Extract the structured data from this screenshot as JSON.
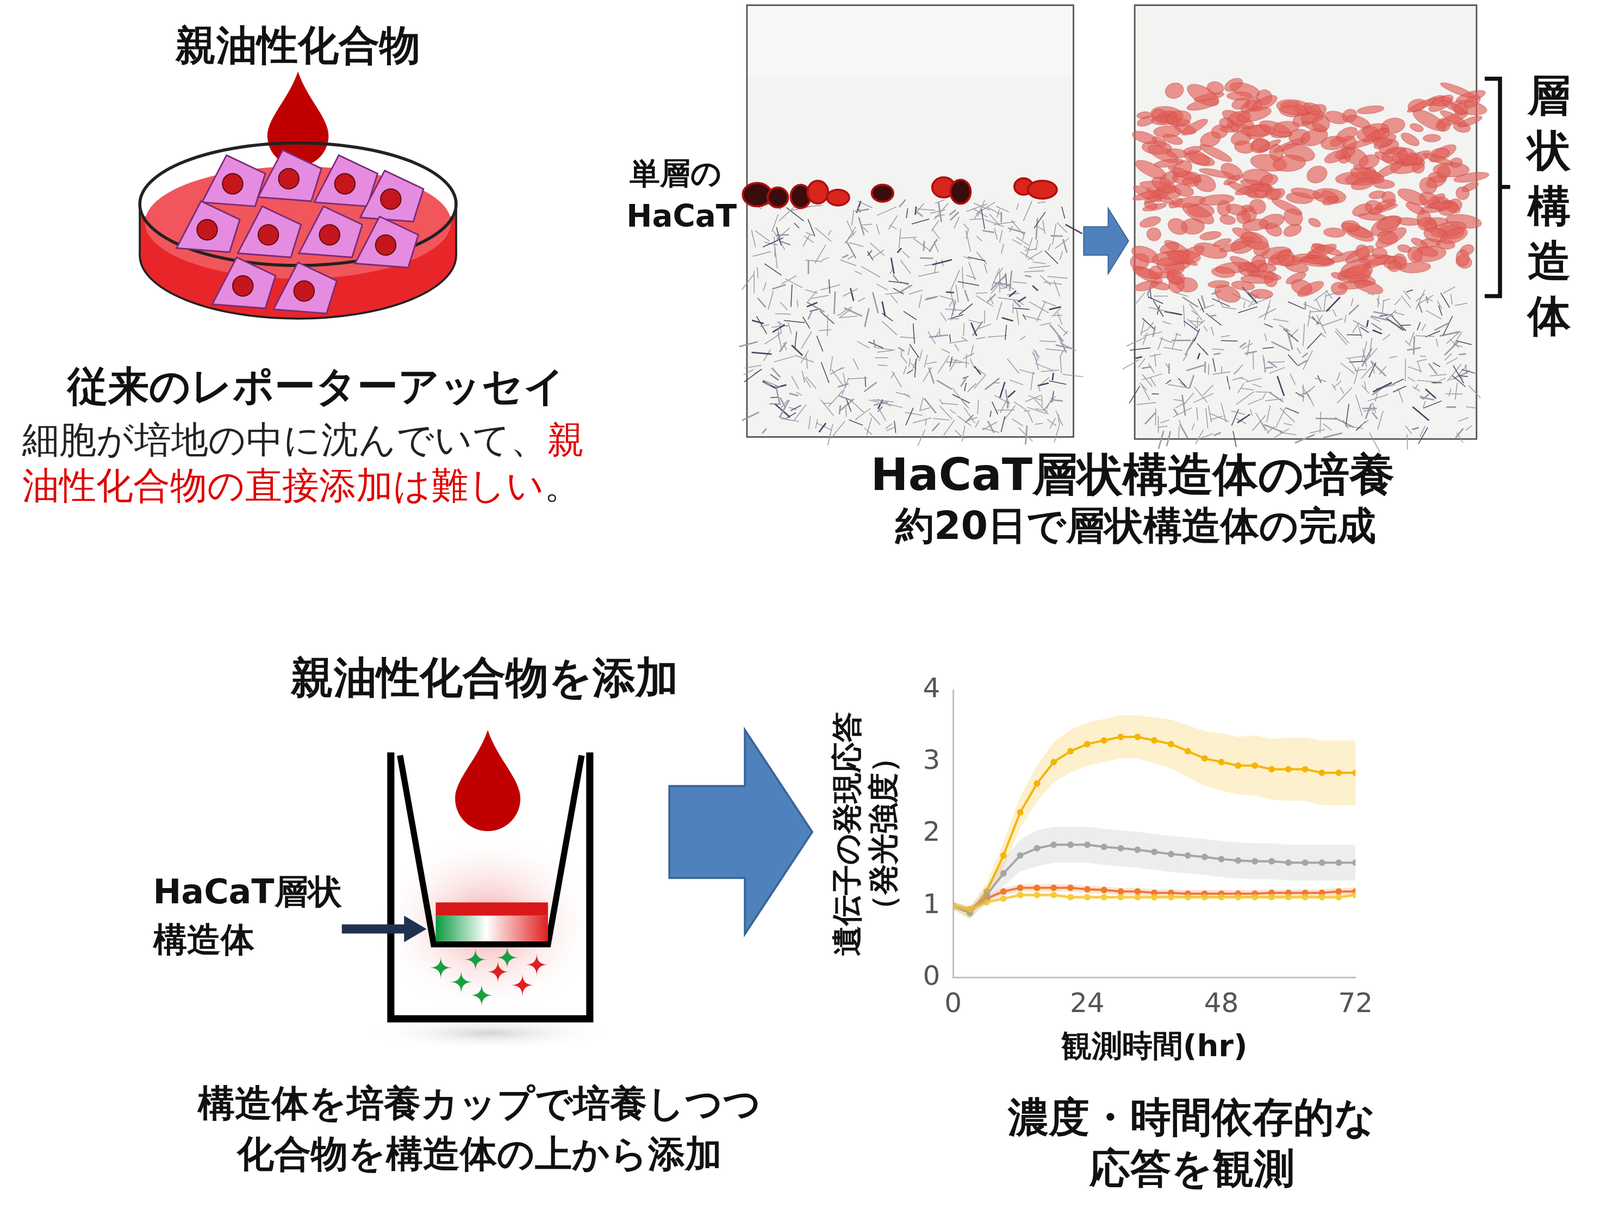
{
  "top_left": {
    "compound": "親油性化合物",
    "title": "従来のレポーターアッセイ",
    "description": [
      [
        {
          "text": "細胞が培地の中に沈んでいて、",
          "color": "#222222"
        },
        {
          "text": "親",
          "color": "#e00000"
        }
      ],
      [
        {
          "text": "油性化合物の直接添加は難しい",
          "color": "#e00000"
        },
        {
          "text": "。",
          "color": "#222222"
        }
      ]
    ]
  },
  "top_right": {
    "monolayer_label": [
      "単層の",
      "HaCaT"
    ],
    "bracket_label": "層状構造体",
    "caption": "HaCaT層状構造体の培養",
    "subcaption": "約20日で層状構造体の完成"
  },
  "bottom_left": {
    "title": "親油性化合物を添加",
    "structure_label": [
      "HaCaT層状",
      "構造体"
    ],
    "caption": [
      "構造体を培養カップで培養しつつ",
      "化合物を構造体の上から添加"
    ]
  },
  "bottom_right": {
    "caption": [
      "濃度・時間依存的な",
      "応答を観測"
    ]
  },
  "chart_data": {
    "type": "line",
    "x_label": "観測時間(hr)",
    "y_label": [
      "遺伝子の発現応答",
      "（発光強度）"
    ],
    "x": [
      0,
      3,
      6,
      9,
      12,
      15,
      18,
      21,
      24,
      27,
      30,
      33,
      36,
      39,
      42,
      45,
      48,
      51,
      54,
      57,
      60,
      63,
      66,
      69,
      72
    ],
    "xlim": [
      0,
      72
    ],
    "xticks": [
      0,
      24,
      48,
      72
    ],
    "ylim": [
      0,
      4
    ],
    "yticks": [
      0,
      1,
      2,
      3,
      4
    ],
    "grid": false,
    "series": [
      {
        "color": "#f5cc3a",
        "marker": "circle",
        "line_style": "solid",
        "values": [
          1.0,
          0.95,
          1.05,
          1.1,
          1.15,
          1.15,
          1.15,
          1.12,
          1.12,
          1.12,
          1.12,
          1.12,
          1.12,
          1.12,
          1.12,
          1.12,
          1.12,
          1.12,
          1.12,
          1.12,
          1.12,
          1.12,
          1.12,
          1.12,
          1.15
        ],
        "error": [
          0.03,
          0.03,
          0.03,
          0.03,
          0.03,
          0.03,
          0.03,
          0.03,
          0.03,
          0.03,
          0.03,
          0.03,
          0.03,
          0.03,
          0.03,
          0.03,
          0.03,
          0.03,
          0.03,
          0.03,
          0.03,
          0.03,
          0.03,
          0.03,
          0.03
        ]
      },
      {
        "color": "#a6a6a6",
        "marker": "circle",
        "line_style": "solid",
        "values": [
          1.0,
          0.9,
          1.15,
          1.45,
          1.7,
          1.8,
          1.85,
          1.85,
          1.85,
          1.82,
          1.8,
          1.78,
          1.75,
          1.72,
          1.7,
          1.68,
          1.65,
          1.63,
          1.62,
          1.62,
          1.6,
          1.6,
          1.6,
          1.6,
          1.6
        ],
        "error": [
          0.05,
          0.08,
          0.12,
          0.18,
          0.22,
          0.25,
          0.25,
          0.25,
          0.25,
          0.25,
          0.25,
          0.25,
          0.25,
          0.25,
          0.25,
          0.25,
          0.25,
          0.25,
          0.25,
          0.25,
          0.25,
          0.25,
          0.25,
          0.25,
          0.25
        ]
      },
      {
        "color": "#f07830",
        "marker": "circle",
        "line_style": "solid",
        "values": [
          1.0,
          0.95,
          1.1,
          1.2,
          1.25,
          1.25,
          1.25,
          1.25,
          1.23,
          1.22,
          1.2,
          1.2,
          1.18,
          1.18,
          1.17,
          1.17,
          1.17,
          1.17,
          1.17,
          1.18,
          1.18,
          1.18,
          1.18,
          1.2,
          1.2
        ],
        "error": [
          0.05,
          0.05,
          0.05,
          0.05,
          0.05,
          0.05,
          0.05,
          0.05,
          0.05,
          0.05,
          0.05,
          0.05,
          0.05,
          0.05,
          0.05,
          0.05,
          0.05,
          0.05,
          0.05,
          0.05,
          0.05,
          0.05,
          0.05,
          0.05,
          0.05
        ]
      },
      {
        "color": "#f5b400",
        "marker": "circle",
        "line_style": "solid",
        "values": [
          1.0,
          0.9,
          1.2,
          1.7,
          2.3,
          2.7,
          3.0,
          3.15,
          3.25,
          3.3,
          3.35,
          3.35,
          3.3,
          3.25,
          3.15,
          3.05,
          3.0,
          2.95,
          2.95,
          2.9,
          2.9,
          2.9,
          2.85,
          2.85,
          2.85
        ],
        "error": [
          0.05,
          0.08,
          0.12,
          0.18,
          0.22,
          0.25,
          0.28,
          0.3,
          0.3,
          0.3,
          0.3,
          0.3,
          0.32,
          0.34,
          0.36,
          0.38,
          0.4,
          0.4,
          0.42,
          0.42,
          0.44,
          0.44,
          0.45,
          0.45,
          0.45
        ]
      }
    ]
  }
}
